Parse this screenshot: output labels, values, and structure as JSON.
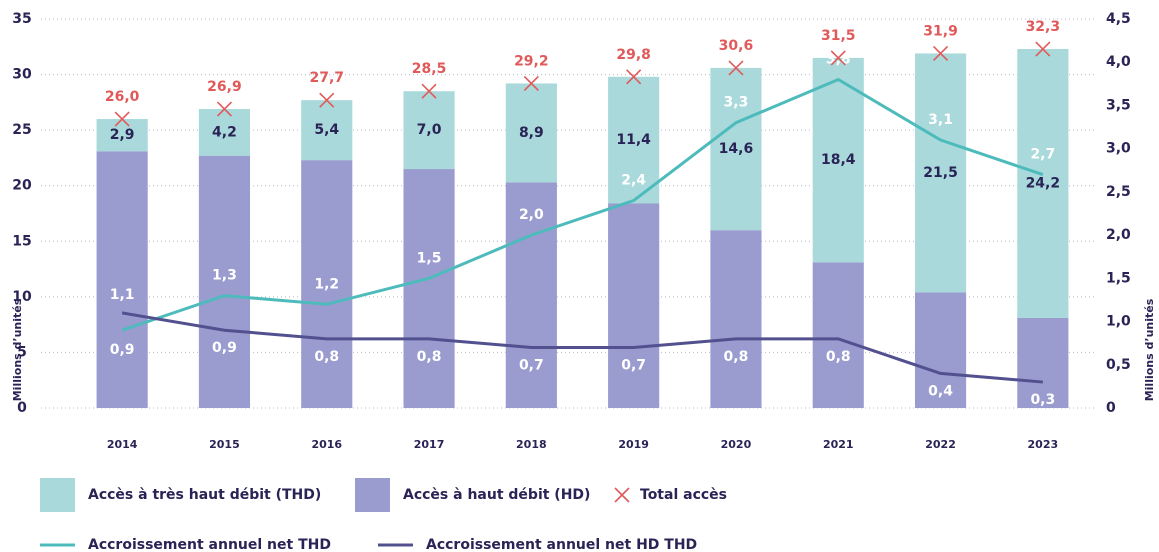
{
  "chart_data": {
    "type": "stacked_bar_line",
    "categories": [
      "2014",
      "2015",
      "2016",
      "2017",
      "2018",
      "2019",
      "2020",
      "2021",
      "2022",
      "2023"
    ],
    "series": [
      {
        "name": "Accès à haut débit (HD)",
        "kind": "bar",
        "color": "#9a9ccf",
        "values": [
          23.1,
          22.7,
          22.3,
          21.5,
          20.3,
          18.4,
          16.0,
          13.1,
          10.4,
          8.1
        ]
      },
      {
        "name": "Accès à très haut débit (THD)",
        "kind": "bar",
        "color": "#a9d9db",
        "values": [
          2.9,
          4.2,
          5.4,
          7.0,
          8.9,
          11.4,
          14.6,
          18.4,
          21.5,
          24.2
        ],
        "value_labels": [
          "2,9",
          "4,2",
          "5,4",
          "7,0",
          "8,9",
          "11,4",
          "14,6",
          "18,4",
          "21,5",
          "24,2"
        ]
      },
      {
        "name": "Total accès",
        "kind": "marker",
        "color": "#e05a5a",
        "values": [
          26.0,
          26.9,
          27.7,
          28.5,
          29.2,
          29.8,
          30.6,
          31.5,
          31.9,
          32.3
        ],
        "value_labels": [
          "26,0",
          "26,9",
          "27,7",
          "28,5",
          "29,2",
          "29,8",
          "30,6",
          "31,5",
          "31,9",
          "32,3"
        ]
      },
      {
        "name": "Accroissement annuel net THD",
        "kind": "line",
        "axis": "y2",
        "color": "#4dbbbb",
        "values": [
          0.9,
          1.3,
          1.2,
          1.5,
          2.0,
          2.4,
          3.3,
          3.8,
          3.1,
          2.7
        ],
        "value_labels": [
          "0,9",
          "1,3",
          "1,2",
          "1,5",
          "2,0",
          "2,4",
          "3,3",
          "3,8",
          "3,1",
          "2,7"
        ]
      },
      {
        "name": "Accroissement annuel net HD THD",
        "kind": "line",
        "axis": "y2",
        "color": "#52508f",
        "values": [
          1.1,
          0.9,
          0.8,
          0.8,
          0.7,
          0.7,
          0.8,
          0.8,
          0.4,
          0.3
        ],
        "value_labels": [
          "1,1",
          "0,9",
          "0,8",
          "0,8",
          "0,7",
          "0,7",
          "0,8",
          "0,8",
          "0,4",
          "0,3"
        ]
      }
    ],
    "ylabel": "Millions d’unités",
    "y2label": "Millions d’unités",
    "ylim": [
      0,
      35
    ],
    "yticks": [
      0,
      5,
      10,
      15,
      20,
      25,
      30,
      35
    ],
    "y2lim": [
      0,
      4.5
    ],
    "y2ticks": [
      0,
      {
        "value": 0.5,
        "label": "0,5"
      },
      {
        "value": 1,
        "label": "1,0"
      },
      {
        "value": 1.5,
        "label": "1,5"
      },
      {
        "value": 2,
        "label": "2,0"
      },
      {
        "value": 2.5,
        "label": "2,5"
      },
      {
        "value": 3,
        "label": "3,0"
      },
      {
        "value": 3.5,
        "label": "3,5"
      },
      {
        "value": 4,
        "label": "4,0"
      },
      {
        "value": 4.5,
        "label": "4,5"
      }
    ],
    "grid": true
  }
}
